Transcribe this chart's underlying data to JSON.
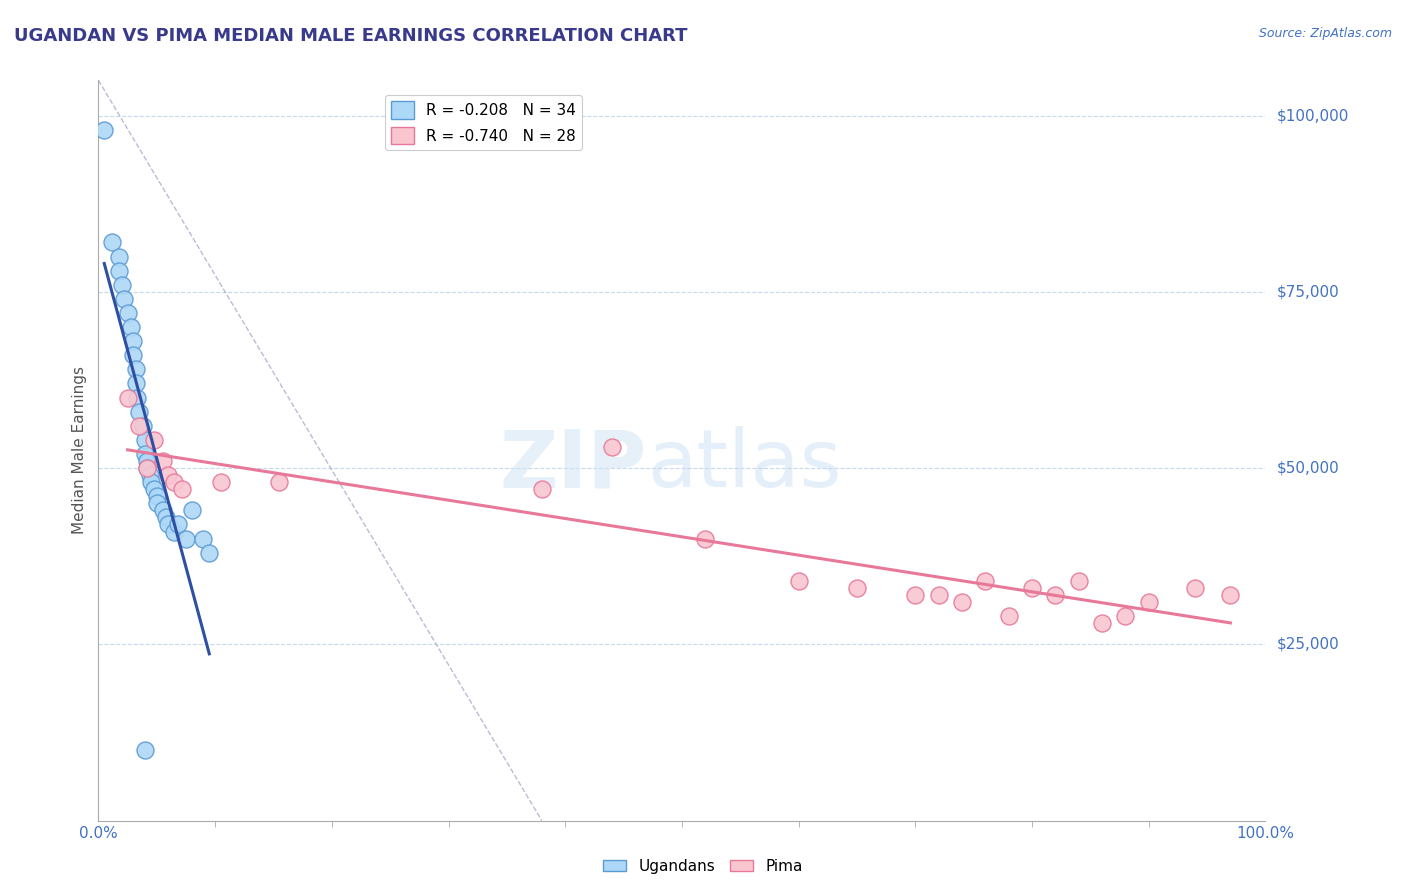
{
  "title": "UGANDAN VS PIMA MEDIAN MALE EARNINGS CORRELATION CHART",
  "source_text": "Source: ZipAtlas.com",
  "ylabel": "Median Male Earnings",
  "xlim": [
    0,
    1.0
  ],
  "ylim": [
    0,
    105000
  ],
  "ytick_values": [
    25000,
    50000,
    75000,
    100000
  ],
  "ytick_labels": [
    "$25,000",
    "$50,000",
    "$75,000",
    "$100,000"
  ],
  "title_color": "#3A3A8C",
  "axis_color": "#4472C4",
  "ugandan_x": [
    0.005,
    0.012,
    0.018,
    0.018,
    0.02,
    0.022,
    0.025,
    0.028,
    0.03,
    0.03,
    0.032,
    0.032,
    0.033,
    0.035,
    0.038,
    0.04,
    0.04,
    0.042,
    0.042,
    0.044,
    0.045,
    0.048,
    0.05,
    0.05,
    0.055,
    0.058,
    0.06,
    0.065,
    0.068,
    0.075,
    0.08,
    0.09,
    0.095,
    0.04
  ],
  "ugandan_y": [
    98000,
    82000,
    80000,
    78000,
    76000,
    74000,
    72000,
    70000,
    68000,
    66000,
    64000,
    62000,
    60000,
    58000,
    56000,
    54000,
    52000,
    51000,
    50000,
    49000,
    48000,
    47000,
    46000,
    45000,
    44000,
    43000,
    42000,
    41000,
    42000,
    40000,
    44000,
    40000,
    38000,
    10000
  ],
  "pima_x": [
    0.025,
    0.035,
    0.042,
    0.048,
    0.055,
    0.06,
    0.065,
    0.072,
    0.105,
    0.155,
    0.38,
    0.44,
    0.52,
    0.6,
    0.65,
    0.7,
    0.72,
    0.74,
    0.76,
    0.78,
    0.8,
    0.82,
    0.84,
    0.86,
    0.88,
    0.9,
    0.94,
    0.97
  ],
  "pima_y": [
    60000,
    56000,
    50000,
    54000,
    51000,
    49000,
    48000,
    47000,
    48000,
    48000,
    47000,
    53000,
    40000,
    34000,
    33000,
    32000,
    32000,
    31000,
    34000,
    29000,
    33000,
    32000,
    34000,
    28000,
    29000,
    31000,
    33000,
    32000
  ],
  "ugandan_color": "#ADD8F7",
  "pima_color": "#F9C6D0",
  "ugandan_edge_color": "#5B9BD5",
  "pima_edge_color": "#E8789A",
  "regression_ugandan_color": "#2E4FA3",
  "regression_pima_color": "#E8789A",
  "background_color": "#FFFFFF",
  "grid_color": "#C5D9F1",
  "dashed_line_color": "#AAAACC",
  "legend_label_1": "R = -0.208   N = 34",
  "legend_label_2": "R = -0.740   N = 28",
  "bottom_legend_1": "Ugandans",
  "bottom_legend_2": "Pima",
  "xtick_minor_count": 10,
  "dashed_line_x": [
    0.0,
    0.38
  ],
  "dashed_line_y": [
    105000,
    0
  ]
}
